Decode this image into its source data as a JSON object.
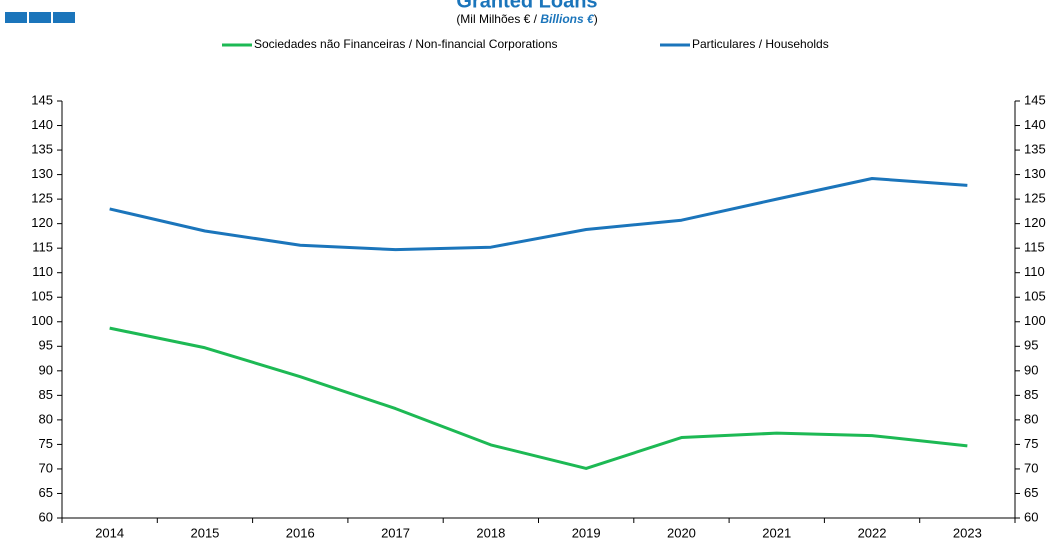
{
  "chart_data": {
    "type": "line",
    "title": "Granted Loans",
    "subtitle": [
      "(Mil Milhões € / ",
      "Billions €",
      ")"
    ],
    "categories": [
      "2014",
      "2015",
      "2016",
      "2017",
      "2018",
      "2019",
      "2020",
      "2021",
      "2022",
      "2023"
    ],
    "series": [
      {
        "name": "Sociedades não Financeiras / Non-financial Corporations",
        "color": "#1db954",
        "values": [
          98.7,
          94.7,
          88.8,
          82.3,
          74.9,
          70.1,
          76.4,
          77.3,
          76.8,
          74.7
        ]
      },
      {
        "name": "Particulares / Households",
        "color": "#1b75bb",
        "values": [
          123.0,
          118.5,
          115.6,
          114.7,
          115.2,
          118.8,
          120.7,
          125.0,
          129.2,
          127.8
        ]
      }
    ],
    "ylim": [
      60,
      145
    ],
    "yticks": [
      60,
      65,
      70,
      75,
      80,
      85,
      90,
      95,
      100,
      105,
      110,
      115,
      120,
      125,
      130,
      135,
      140,
      145
    ],
    "y2lim": [
      60,
      145
    ],
    "y2ticks": [
      60,
      65,
      70,
      75,
      80,
      85,
      90,
      95,
      100,
      105,
      110,
      115,
      120,
      125,
      130,
      135,
      140,
      145
    ],
    "grid": false,
    "legend": "top"
  }
}
